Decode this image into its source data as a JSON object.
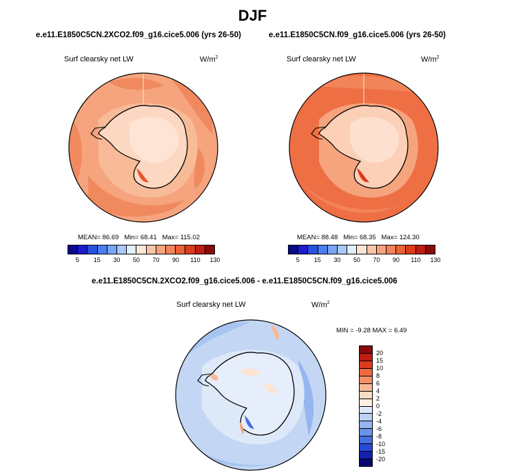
{
  "page": {
    "title": "DJF"
  },
  "panels": [
    {
      "case": "e.e11.E1850C5CN.2XCO2.f09_g16.cice5.006 (yrs 26-50)",
      "variable": "Surf clearsky net LW",
      "units_base": "W/m",
      "units_exp": "2",
      "mean_label": "MEAN=",
      "mean": "86.69",
      "min_label": "Min=",
      "min": "68.41",
      "max_label": "Max=",
      "max": "115.02"
    },
    {
      "case": "e.e11.E1850C5CN.f09_g16.cice5.006 (yrs 26-50)",
      "variable": "Surf clearsky net LW",
      "units_base": "W/m",
      "units_exp": "2",
      "mean_label": "MEAN=",
      "mean": "88.48",
      "min_label": "Min=",
      "min": "68.35",
      "max_label": "Max=",
      "max": "124.30"
    }
  ],
  "abs_colorbar": {
    "colors": [
      "#0a0a8c",
      "#1c1ccc",
      "#2a50e0",
      "#4a7ff0",
      "#7aa6f5",
      "#a8c8f8",
      "#dfeffc",
      "#fde6d6",
      "#f9c4a6",
      "#f5a47e",
      "#f2845a",
      "#ec6237",
      "#dc3c1e",
      "#be1e12",
      "#8a0a0a"
    ],
    "ticks": [
      "5",
      "15",
      "30",
      "50",
      "70",
      "90",
      "110",
      "130"
    ]
  },
  "diff": {
    "title": "e.e11.E1850C5CN.2XCO2.f09_g16.cice5.006 - e.e11.E1850C5CN.f09_g16.cice5.006",
    "variable": "Surf clearsky net LW",
    "units_base": "W/m",
    "units_exp": "2",
    "min_label": "MIN =",
    "min": "-9.28",
    "max_label": "MAX =",
    "max": "6.49"
  },
  "diff_colorbar": {
    "colors": [
      "#8a0a0a",
      "#be1e12",
      "#dc3c1e",
      "#ef6a40",
      "#f59066",
      "#f8b896",
      "#fbdcc4",
      "#fdf0e4",
      "#dde9f8",
      "#bcd3f3",
      "#95b6ef",
      "#6a93ea",
      "#4570e4",
      "#2a48d8",
      "#1420b0",
      "#080870"
    ],
    "ticks": [
      "20",
      "15",
      "10",
      "8",
      "6",
      "4",
      "2",
      "0",
      "-2",
      "-4",
      "-6",
      "-8",
      "-10",
      "-15",
      "-20"
    ]
  }
}
